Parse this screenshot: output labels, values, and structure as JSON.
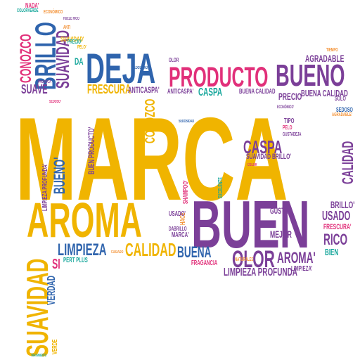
{
  "colors": {
    "yellow": "#f0b400",
    "purple": "#7b3f98",
    "blue": "#2f64ad",
    "pink": "#e1307a",
    "teal": "#18a79c",
    "green": "#7db94a",
    "orange": "#f39237"
  },
  "words": [
    {
      "text": "MARCA"
    },
    {
      "text": "BUEN"
    },
    {
      "text": "AROMA"
    },
    {
      "text": "DEJA"
    },
    {
      "text": "PRODUCTO"
    },
    {
      "text": "BUENO"
    },
    {
      "text": "BRILLO"
    },
    {
      "text": "SUAVIDAD"
    },
    {
      "text": "SUAVIDAD"
    },
    {
      "text": "CONOZCO"
    },
    {
      "text": "SUAVE"
    },
    {
      "text": "FRESCURA"
    },
    {
      "text": "LIMPIEZA"
    },
    {
      "text": "CALIDAD"
    },
    {
      "text": "CALIDAD"
    },
    {
      "text": "OLOR"
    },
    {
      "text": "BUENO'"
    },
    {
      "text": "CASPA"
    },
    {
      "text": "CASPA"
    },
    {
      "text": "BUENA"
    },
    {
      "text": "AROMA'"
    },
    {
      "text": "LIMPIEZA PROFUNDA"
    },
    {
      "text": "RICO"
    },
    {
      "text": "USADO"
    },
    {
      "text": "BRILLO'"
    },
    {
      "text": "FRESCURA'"
    },
    {
      "text": "MEJOR"
    },
    {
      "text": "GUSTA"
    },
    {
      "text": "VERDAD"
    },
    {
      "text": "SI"
    },
    {
      "text": "AGRADABLE"
    },
    {
      "text": "PRECIO"
    },
    {
      "text": "BUENA CALIDAD"
    },
    {
      "text": "BUENA CALIDAD"
    },
    {
      "text": "ANTICASPA'"
    },
    {
      "text": "ANTICASPA'"
    },
    {
      "text": "CONOZCO"
    },
    {
      "text": "BUEN PRODUCTO'"
    },
    {
      "text": "SUAVIDAD BRILLO'"
    },
    {
      "text": "BIEN"
    },
    {
      "text": "DA"
    },
    {
      "text": "PERT PLUS"
    },
    {
      "text": "SUAVIDAD'"
    },
    {
      "text": "NADA'"
    },
    {
      "text": "COLORVERDE"
    },
    {
      "text": "ECONÓMICO"
    },
    {
      "text": "HUELE RICO"
    },
    {
      "text": "LIMPIEZA PROFUNDA'"
    },
    {
      "text": "SEDOSO"
    },
    {
      "text": "SOLO"
    },
    {
      "text": "TIPO"
    },
    {
      "text": "PELO"
    },
    {
      "text": "GUSTADEJA"
    },
    {
      "text": "MARCA'"
    },
    {
      "text": "USADO'"
    },
    {
      "text": "DABRILLO"
    },
    {
      "text": "FRAGANCIA"
    },
    {
      "text": "LIMPIEZA'"
    },
    {
      "text": "VERDE"
    },
    {
      "text": "PROVOCA"
    },
    {
      "text": "TRATAMIENTO"
    },
    {
      "text": "OLOR"
    },
    {
      "text": "SEDOSIDAD"
    },
    {
      "text": "SEDOSO'"
    },
    {
      "text": "AGRADABLE'"
    },
    {
      "text": "TIEMPO"
    },
    {
      "text": "PELO'"
    },
    {
      "text": "SEDOSIDAD"
    },
    {
      "text": "PRECIO'"
    },
    {
      "text": "ANTI"
    },
    {
      "text": "HACE"
    },
    {
      "text": "SHAMPOO'"
    },
    {
      "text": "EXCELENTE"
    },
    {
      "text": "COLOR"
    },
    {
      "text": "CUIDADO"
    },
    {
      "text": "NATURALES"
    },
    {
      "text": "ECONÓMICO'"
    }
  ]
}
